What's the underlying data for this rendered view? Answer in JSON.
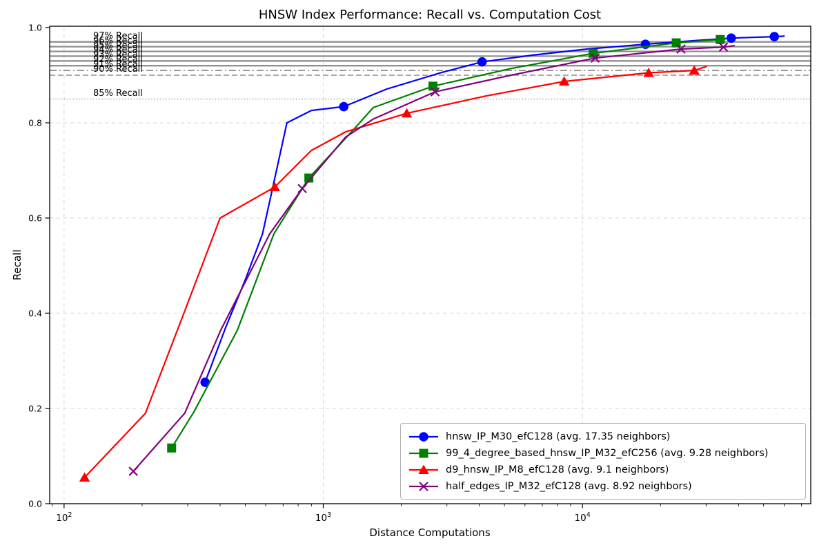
{
  "chart_data": {
    "type": "line",
    "title": "HNSW Index Performance: Recall vs. Computation Cost",
    "xlabel": "Distance Computations",
    "ylabel": "Recall",
    "x_scale": "log",
    "xlim": [
      88,
      76000
    ],
    "ylim": [
      0.0,
      1.0
    ],
    "grid": {
      "on": true,
      "color": "#d4d4d4",
      "style": "dashed"
    },
    "x_ticks": [
      {
        "value": 100,
        "base": "10",
        "exponent": "2"
      },
      {
        "value": 1000,
        "base": "10",
        "exponent": "3"
      },
      {
        "value": 10000,
        "base": "10",
        "exponent": "4"
      }
    ],
    "y_ticks": [
      {
        "value": 0.0,
        "label": "0.0"
      },
      {
        "value": 0.2,
        "label": "0.2"
      },
      {
        "value": 0.4,
        "label": "0.4"
      },
      {
        "value": 0.6,
        "label": "0.6"
      },
      {
        "value": 0.8,
        "label": "0.8"
      },
      {
        "value": 1.0,
        "label": "1.0"
      }
    ],
    "reference_lines": [
      {
        "value": 0.97,
        "style": "solid",
        "label": "97% Recall",
        "color": "#909090"
      },
      {
        "value": 0.96,
        "style": "solid",
        "label": "96% Recall",
        "color": "#909090"
      },
      {
        "value": 0.95,
        "style": "solid",
        "label": "95% Recall",
        "color": "#909090"
      },
      {
        "value": 0.94,
        "style": "solid",
        "label": "94% Recall",
        "color": "#909090"
      },
      {
        "value": 0.93,
        "style": "solid",
        "label": "93% Recall",
        "color": "#909090"
      },
      {
        "value": 0.92,
        "style": "solid",
        "label": "92% Recall",
        "color": "#909090"
      },
      {
        "value": 0.91,
        "style": "dashdot",
        "label": "91% Recall",
        "color": "#909090"
      },
      {
        "value": 0.9,
        "style": "dashed",
        "label": "90% Recall",
        "color": "#9e9e9e"
      },
      {
        "value": 0.85,
        "style": "dotted",
        "label": "85% Recall",
        "color": "#a8a8a8"
      }
    ],
    "legend": {
      "position": "lower right"
    },
    "series": [
      {
        "name": "hnsw_IP_M30_efC128",
        "legend_label": "hnsw_IP_M30_efC128 (avg. 17.35 neighbors)",
        "color": "#0000ff",
        "marker": "circle",
        "markers": [
          [
            350,
            0.255
          ],
          [
            1200,
            0.834
          ],
          [
            4100,
            0.928
          ],
          [
            17500,
            0.965
          ],
          [
            37500,
            0.978
          ],
          [
            55000,
            0.981
          ]
        ],
        "line": [
          [
            350,
            0.255
          ],
          [
            420,
            0.37
          ],
          [
            500,
            0.47
          ],
          [
            583,
            0.567
          ],
          [
            660,
            0.7
          ],
          [
            724,
            0.8
          ],
          [
            900,
            0.826
          ],
          [
            1200,
            0.834
          ],
          [
            1760,
            0.871
          ],
          [
            2870,
            0.906
          ],
          [
            4100,
            0.928
          ],
          [
            6400,
            0.942
          ],
          [
            10400,
            0.955
          ],
          [
            17500,
            0.965
          ],
          [
            26000,
            0.972
          ],
          [
            37500,
            0.978
          ],
          [
            55000,
            0.981
          ],
          [
            60000,
            0.982
          ]
        ]
      },
      {
        "name": "99_4_degree_based_hnsw_IP_M32_efC256",
        "legend_label": "99_4_degree_based_hnsw_IP_M32_efC256 (avg. 9.28 neighbors)",
        "color": "#008000",
        "marker": "square",
        "markers": [
          [
            260,
            0.117
          ],
          [
            880,
            0.684
          ],
          [
            2650,
            0.877
          ],
          [
            11000,
            0.946
          ],
          [
            23000,
            0.968
          ],
          [
            34000,
            0.975
          ]
        ],
        "line": [
          [
            260,
            0.117
          ],
          [
            317,
            0.193
          ],
          [
            466,
            0.364
          ],
          [
            645,
            0.567
          ],
          [
            880,
            0.684
          ],
          [
            1280,
            0.78
          ],
          [
            1560,
            0.832
          ],
          [
            2650,
            0.877
          ],
          [
            5300,
            0.914
          ],
          [
            11000,
            0.946
          ],
          [
            23000,
            0.968
          ],
          [
            34000,
            0.975
          ],
          [
            35500,
            0.976
          ]
        ]
      },
      {
        "name": "d9_hnsw_IP_M8_efC128",
        "legend_label": "d9_hnsw_IP_M8_efC128 (avg. 9.1 neighbors)",
        "color": "#ff0000",
        "marker": "triangle",
        "markers": [
          [
            120,
            0.055
          ],
          [
            650,
            0.665
          ],
          [
            2100,
            0.82
          ],
          [
            8500,
            0.887
          ],
          [
            18000,
            0.905
          ],
          [
            27000,
            0.91
          ]
        ],
        "line": [
          [
            120,
            0.055
          ],
          [
            206,
            0.19
          ],
          [
            290,
            0.4
          ],
          [
            400,
            0.6
          ],
          [
            650,
            0.665
          ],
          [
            900,
            0.742
          ],
          [
            1220,
            0.781
          ],
          [
            2100,
            0.82
          ],
          [
            4200,
            0.856
          ],
          [
            8500,
            0.887
          ],
          [
            18000,
            0.905
          ],
          [
            27000,
            0.91
          ],
          [
            30000,
            0.918
          ]
        ]
      },
      {
        "name": "half_edges_IP_M32_efC128",
        "legend_label": "half_edges_IP_M32_efC128 (avg. 8.92 neighbors)",
        "color": "#800080",
        "marker": "x",
        "markers": [
          [
            185,
            0.068
          ],
          [
            830,
            0.662
          ],
          [
            2700,
            0.865
          ],
          [
            11200,
            0.936
          ],
          [
            24000,
            0.955
          ],
          [
            35000,
            0.959
          ]
        ],
        "line": [
          [
            185,
            0.068
          ],
          [
            292,
            0.19
          ],
          [
            402,
            0.364
          ],
          [
            622,
            0.567
          ],
          [
            830,
            0.662
          ],
          [
            1220,
            0.77
          ],
          [
            1560,
            0.808
          ],
          [
            2700,
            0.865
          ],
          [
            5300,
            0.9
          ],
          [
            11200,
            0.936
          ],
          [
            24000,
            0.955
          ],
          [
            35000,
            0.959
          ],
          [
            38500,
            0.962
          ]
        ]
      }
    ]
  }
}
